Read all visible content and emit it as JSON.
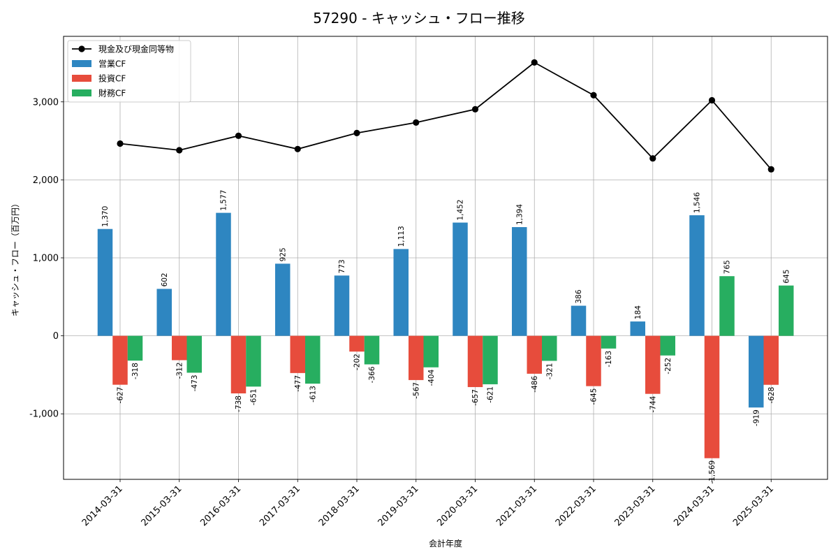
{
  "chart_data": {
    "type": "bar",
    "title": "57290 - キャッシュ・フロー推移",
    "xlabel": "会計年度",
    "ylabel": "キャッシュ・フロー（百万円）",
    "ylim": [
      -1840,
      3840
    ],
    "yticks": [
      -1000,
      0,
      1000,
      2000,
      3000
    ],
    "ytick_labels": [
      "-1,000",
      "0",
      "1,000",
      "2,000",
      "3,000"
    ],
    "grid": true,
    "legend_position": "top-left",
    "categories": [
      "2014-03-31",
      "2015-03-31",
      "2016-03-31",
      "2017-03-31",
      "2018-03-31",
      "2019-03-31",
      "2020-03-31",
      "2021-03-31",
      "2022-03-31",
      "2023-03-31",
      "2024-03-31",
      "2025-03-31"
    ],
    "series": [
      {
        "name": "営業CF",
        "kind": "bar",
        "color": "#2e86c1",
        "values": [
          1370,
          602,
          1577,
          925,
          773,
          1113,
          1452,
          1394,
          386,
          184,
          1546,
          -919
        ],
        "labels": [
          "1,370",
          "602",
          "1,577",
          "925",
          "773",
          "1,113",
          "1,452",
          "1,394",
          "386",
          "184",
          "1,546",
          "-919"
        ]
      },
      {
        "name": "投資CF",
        "kind": "bar",
        "color": "#e74c3c",
        "values": [
          -627,
          -312,
          -738,
          -477,
          -202,
          -567,
          -657,
          -486,
          -645,
          -744,
          -1569,
          -628
        ],
        "labels": [
          "-627",
          "-312",
          "-738",
          "-477",
          "-202",
          "-567",
          "-657",
          "-486",
          "-645",
          "-744",
          "-1,569",
          "-628"
        ]
      },
      {
        "name": "財務CF",
        "kind": "bar",
        "color": "#27ae60",
        "values": [
          -318,
          -473,
          -651,
          -613,
          -366,
          -404,
          -621,
          -321,
          -163,
          -252,
          765,
          645
        ],
        "labels": [
          "-318",
          "-473",
          "-651",
          "-613",
          "-366",
          "-404",
          "-621",
          "-321",
          "-163",
          "-252",
          "765",
          "645"
        ]
      },
      {
        "name": "現金及び現金同等物",
        "kind": "line",
        "color": "#000000",
        "values": [
          2465,
          2380,
          2565,
          2395,
          2600,
          2735,
          2905,
          3505,
          3085,
          2275,
          3020,
          2135
        ]
      }
    ]
  }
}
